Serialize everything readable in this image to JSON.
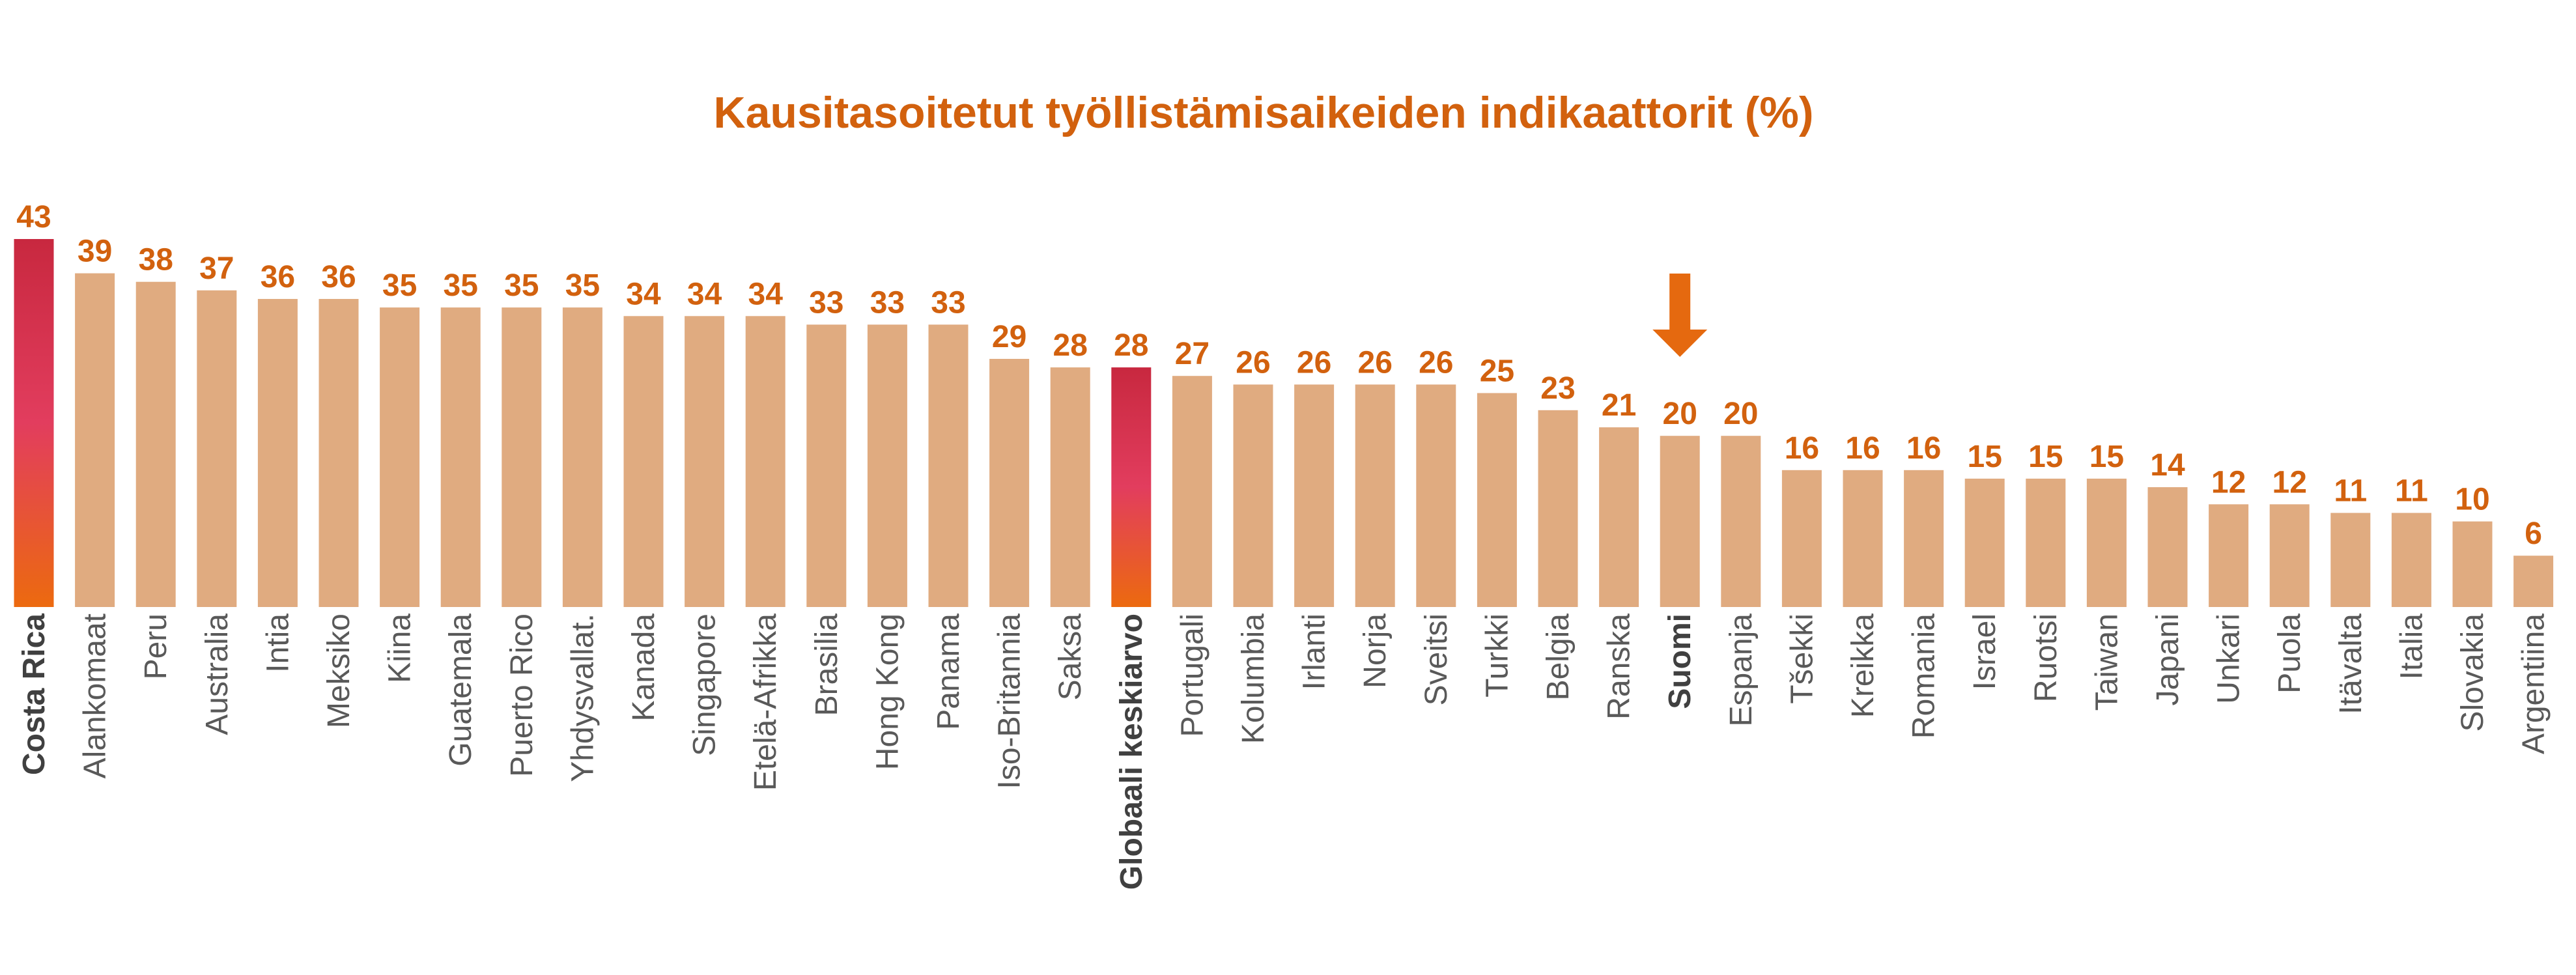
{
  "chart_data": {
    "type": "bar",
    "title": "Kausitasoitetut työllistämisaikeiden indikaattorit (%)",
    "categories": [
      "Costa Rica",
      "Alankomaat",
      "Peru",
      "Australia",
      "Intia",
      "Meksiko",
      "Kiina",
      "Guatemala",
      "Puerto Rico",
      "Yhdysvallat.",
      "Kanada",
      "Singapore",
      "Etelä-Afrikka",
      "Brasilia",
      "Hong Kong",
      "Panama",
      "Iso-Britannia",
      "Saksa",
      "Globaali keskiarvo",
      "Portugali",
      "Kolumbia",
      "Irlanti",
      "Norja",
      "Sveitsi",
      "Turkki",
      "Belgia",
      "Ranska",
      "Suomi",
      "Espanja",
      "Tšekki",
      "Kreikka",
      "Romania",
      "Israel",
      "Ruotsi",
      "Taiwan",
      "Japani",
      "Unkari",
      "Puola",
      "Itävalta",
      "Italia",
      "Slovakia",
      "Argentiina"
    ],
    "values": [
      43,
      39,
      38,
      37,
      36,
      36,
      35,
      35,
      35,
      35,
      34,
      34,
      34,
      33,
      33,
      33,
      29,
      28,
      28,
      27,
      26,
      26,
      26,
      26,
      25,
      23,
      21,
      20,
      20,
      16,
      16,
      16,
      15,
      15,
      15,
      14,
      12,
      12,
      11,
      11,
      10,
      6
    ],
    "value_labels": [
      "43",
      "39",
      "38",
      "37",
      "36",
      "36",
      "35",
      "35",
      "35",
      "35",
      "34",
      "34",
      "34",
      "33",
      "33",
      "33",
      "29",
      "28",
      "28",
      "27",
      "26",
      "26",
      "26",
      "26",
      "25",
      "23",
      "21",
      "20",
      "20",
      "16",
      "16",
      "16",
      "15",
      "15",
      "15",
      "14",
      "12",
      "12",
      "11",
      "11",
      "10",
      "6"
    ],
    "ylim": [
      0,
      43
    ],
    "highlighted_bold_labels": [
      "Costa Rica",
      "Globaali keskiarvo",
      "Suomi"
    ],
    "gradient_bars": [
      "Costa Rica",
      "Globaali keskiarvo"
    ],
    "arrow_marker_on": "Suomi",
    "grid": false,
    "legend": "none",
    "colors": {
      "bar": "#E0AB80",
      "accent": "#D2610E",
      "gradient_top": "#C8283F",
      "gradient_mid": "#E23D5E",
      "gradient_bottom": "#EC6A0F",
      "arrow": "#E5690F",
      "label_text": "#595959",
      "label_bold": "#404040"
    }
  }
}
